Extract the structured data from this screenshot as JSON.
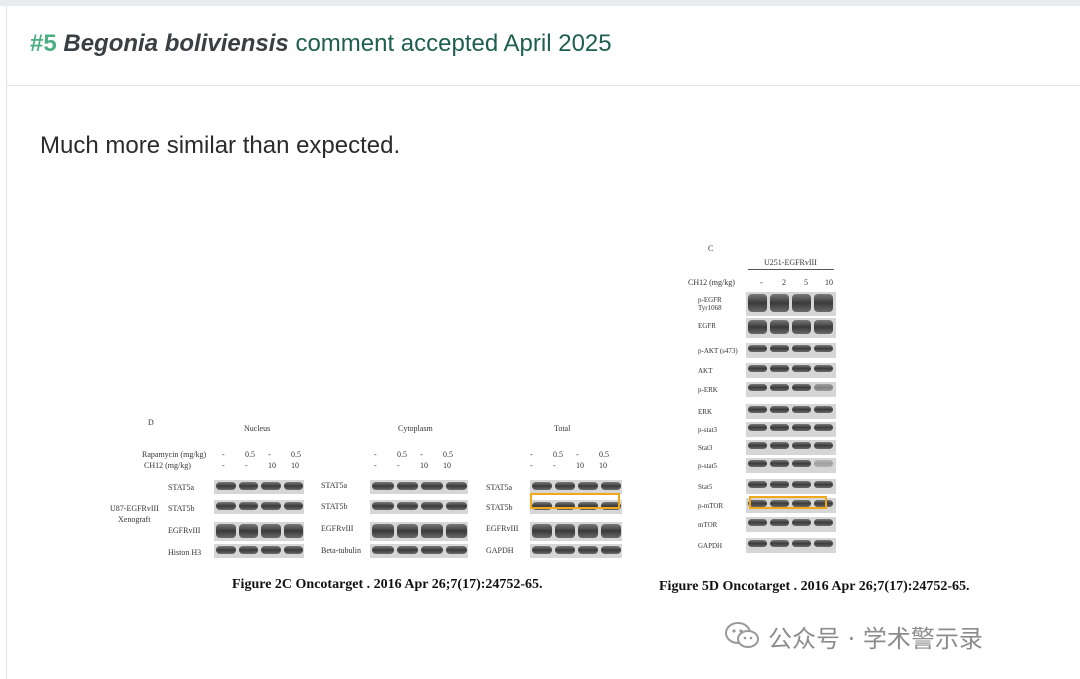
{
  "comment": {
    "number": "#5",
    "species": "Begonia boliviensis",
    "status": "comment accepted April 2025",
    "body": "Much more similar than expected."
  },
  "figure_left": {
    "panel_letter": "D",
    "sections": [
      "Nucleus",
      "Cytoplasm",
      "Total"
    ],
    "row_header_1": "Rapamycin (mg/kg)",
    "row_header_2": "CH12 (mg/kg)",
    "rapamycin_values": [
      "-",
      "0.5",
      "-",
      "0.5"
    ],
    "ch12_values": [
      "-",
      "-",
      "10",
      "10"
    ],
    "side_label_1": "U87-EGFRvIII",
    "side_label_2": "Xenograft",
    "nucleus_rows": [
      "STAT5a",
      "STAT5b",
      "EGFRvIII",
      "Histon H3"
    ],
    "cytoplasm_rows": [
      "STAT5a",
      "STAT5b",
      "EGFRvIII",
      "Beta-tubulin"
    ],
    "total_rows": [
      "STAT5a",
      "STAT5b",
      "EGFRvIII",
      "GAPDH"
    ],
    "caption": "Figure 2C Oncotarget . 2016 Apr 26;7(17):24752-65."
  },
  "figure_right": {
    "panel_letter": "C",
    "cell_line": "U251-EGFRvIII",
    "row_header": "CH12 (mg/kg)",
    "doses": [
      "-",
      "2",
      "5",
      "10"
    ],
    "rows": [
      "p-EGFR Tyr1068",
      "EGFR",
      "p-AKT (s473)",
      "AKT",
      "p-ERK",
      "ERK",
      "p-stat3",
      "Stat3",
      "p-stat5",
      "Stat5",
      "p-mTOR",
      "mTOR",
      "GAPDH"
    ],
    "caption": "Figure 5D Oncotarget . 2016 Apr 26;7(17):24752-65."
  },
  "watermark": {
    "text": "公众号 · 学术警示录"
  },
  "colors": {
    "number": "#4caf84",
    "title": "#1f5f4f",
    "highlight": "#f0a81c"
  }
}
